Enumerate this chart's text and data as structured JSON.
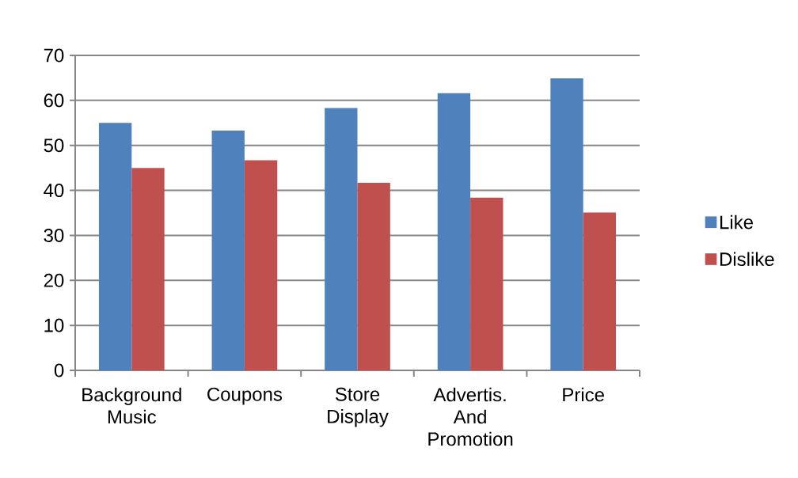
{
  "chart_data": {
    "type": "bar",
    "categories": [
      "Background Music",
      "Coupons",
      "Store Display",
      "Advertis. And Promotion",
      "Price"
    ],
    "series": [
      {
        "name": "Like",
        "color": "#4f81bd",
        "values": [
          55,
          53.3,
          58.3,
          61.6,
          64.9
        ]
      },
      {
        "name": "Dislike",
        "color": "#c0504d",
        "values": [
          45,
          46.7,
          41.7,
          38.4,
          35.1
        ]
      }
    ],
    "ylim": [
      0,
      70
    ],
    "yticks": [
      0,
      10,
      20,
      30,
      40,
      50,
      60,
      70
    ],
    "grid": "y",
    "legend": "right"
  }
}
